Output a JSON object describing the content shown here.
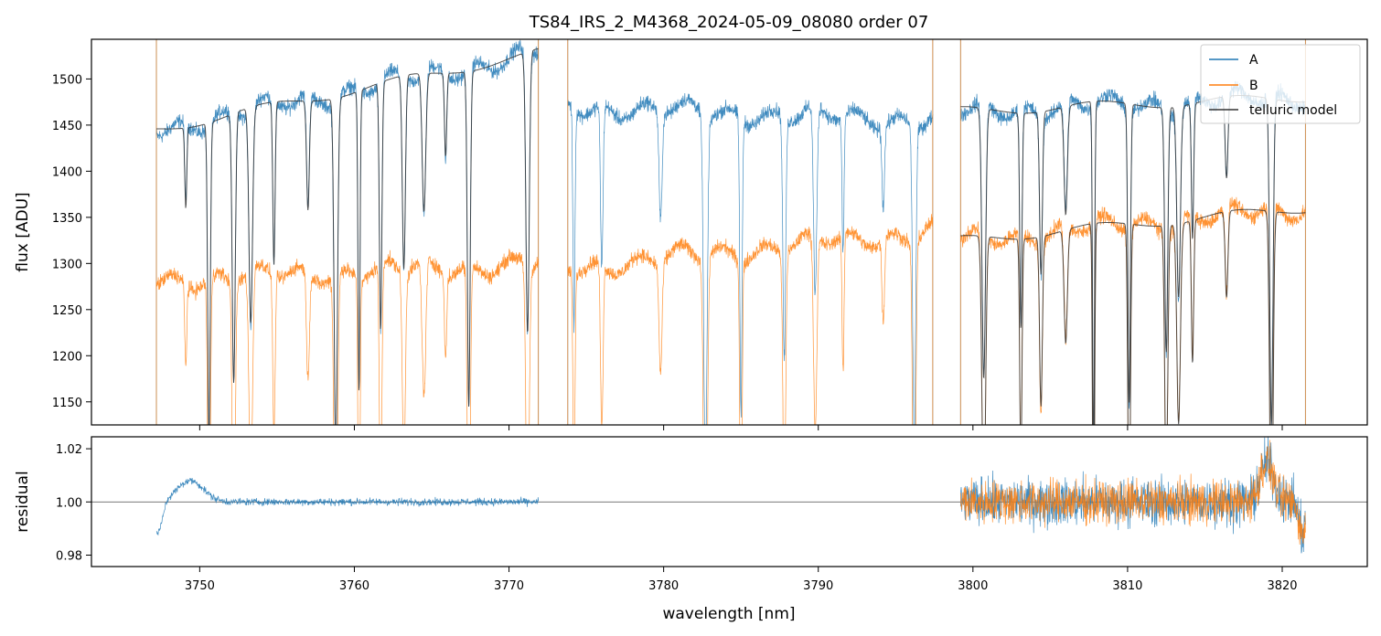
{
  "chart_data": [
    {
      "type": "line",
      "panel": "spectrum",
      "title": "TS84_IRS_2_M4368_2024-05-09_08080  order 07",
      "xlabel": "",
      "ylabel": "flux [ADU]",
      "xlim": [
        3743.0,
        3825.5
      ],
      "ylim": [
        1125,
        1543
      ],
      "yticks": [
        1150,
        1200,
        1250,
        1300,
        1350,
        1400,
        1450,
        1500
      ],
      "ytick_labels": [
        "1150",
        "1200",
        "1250",
        "1300",
        "1350",
        "1400",
        "1450",
        "1500"
      ],
      "xticks": [
        3750,
        3760,
        3770,
        3780,
        3790,
        3800,
        3810,
        3820
      ],
      "grid": false,
      "legend_position": "top-right",
      "series": [
        {
          "name": "A",
          "color": "#1f77b4",
          "segments": [
            {
              "x_start": 3747.2,
              "x_end": 3771.9,
              "continuum_start": 1445,
              "continuum_end": 1528
            },
            {
              "x_start": 3773.8,
              "x_end": 3797.4,
              "continuum_start": 1470,
              "continuum_end": 1455
            },
            {
              "x_start": 3799.2,
              "x_end": 3821.5,
              "continuum_start": 1465,
              "continuum_end": 1480
            }
          ]
        },
        {
          "name": "B",
          "color": "#ff7f0e",
          "segments": [
            {
              "x_start": 3747.2,
              "x_end": 3771.9,
              "continuum_start": 1282,
              "continuum_end": 1300
            },
            {
              "x_start": 3773.8,
              "x_end": 3797.4,
              "continuum_start": 1295,
              "continuum_end": 1335
            },
            {
              "x_start": 3799.2,
              "x_end": 3821.5,
              "continuum_start": 1325,
              "continuum_end": 1360
            }
          ]
        },
        {
          "name": "telluric model",
          "color": "#333333",
          "segments": [
            {
              "x_start": 3747.2,
              "x_end": 3771.9,
              "on": "A"
            },
            {
              "x_start": 3799.2,
              "x_end": 3821.5,
              "on": "A"
            },
            {
              "x_start": 3799.2,
              "x_end": 3821.5,
              "on": "B"
            }
          ]
        }
      ],
      "absorption_lines": [
        3749.1,
        3750.6,
        3752.2,
        3753.3,
        3754.8,
        3757.0,
        3758.8,
        3760.3,
        3761.7,
        3763.2,
        3764.5,
        3765.9,
        3767.4,
        3771.2,
        3774.2,
        3776.0,
        3779.8,
        3782.7,
        3785.0,
        3787.8,
        3789.8,
        3791.6,
        3794.2,
        3796.2,
        3800.7,
        3803.1,
        3804.4,
        3806.0,
        3807.8,
        3810.1,
        3812.5,
        3813.3,
        3814.2,
        3816.4,
        3819.3
      ]
    },
    {
      "type": "line",
      "panel": "residual",
      "xlabel": "wavelength [nm]",
      "ylabel": "residual",
      "xlim": [
        3743.0,
        3825.5
      ],
      "ylim": [
        0.9757,
        1.0245
      ],
      "yticks": [
        0.98,
        1.0,
        1.02
      ],
      "ytick_labels": [
        "0.98",
        "1.00",
        "1.02"
      ],
      "xticks": [
        3750,
        3760,
        3770,
        3780,
        3790,
        3800,
        3810,
        3820
      ],
      "xtick_labels": [
        "3750",
        "3760",
        "3770",
        "3780",
        "3790",
        "3800",
        "3810",
        "3820"
      ],
      "reference_line": 1.0,
      "series": [
        {
          "name": "A",
          "color": "#1f77b4",
          "segments": [
            {
              "x_start": 3747.2,
              "x_end": 3771.9
            },
            {
              "x_start": 3799.2,
              "x_end": 3821.5
            }
          ]
        },
        {
          "name": "B",
          "color": "#ff7f0e",
          "segments": [
            {
              "x_start": 3799.2,
              "x_end": 3821.5
            }
          ]
        }
      ]
    }
  ],
  "legend": {
    "items": [
      {
        "label": "A",
        "color": "#1f77b4"
      },
      {
        "label": "B",
        "color": "#ff7f0e"
      },
      {
        "label": "telluric model",
        "color": "#333333"
      }
    ]
  }
}
